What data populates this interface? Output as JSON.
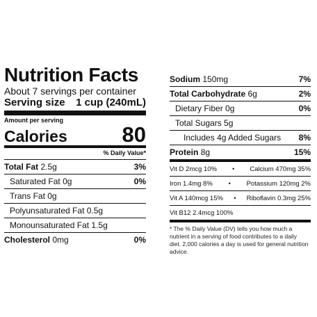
{
  "label": {
    "title": "Nutrition Facts",
    "servings_per_container": "About 7 servings per container",
    "serving_size_label": "Serving size",
    "serving_size_value": "1 cup (240mL)",
    "amount_per_serving": "Amount per serving",
    "calories_label": "Calories",
    "calories_value": "80",
    "dv_header": "% Daily Value*"
  },
  "left_rows": [
    {
      "name": "Total Fat",
      "amount": "2.5g",
      "dv": "3%"
    },
    {
      "name": "Saturated Fat",
      "amount": "0g",
      "dv": "0%"
    },
    {
      "name": "Trans Fat",
      "amount": "0g",
      "dv": ""
    },
    {
      "name": "Polyunsaturated Fat",
      "amount": "0.5g",
      "dv": ""
    },
    {
      "name": "Monounsaturated Fat",
      "amount": "1.5g",
      "dv": ""
    },
    {
      "name": "Cholesterol",
      "amount": "0mg",
      "dv": "0%"
    }
  ],
  "right_rows": [
    {
      "name": "Sodium",
      "amount": "150mg",
      "dv": "7%"
    },
    {
      "name": "Total Carbohydrate",
      "amount": "6g",
      "dv": "2%"
    },
    {
      "name": "Dietary Fiber",
      "amount": "0g",
      "dv": "0%"
    },
    {
      "name": "Total Sugars",
      "amount": "5g",
      "dv": ""
    },
    {
      "name": "Includes 4g Added Sugars",
      "amount": "",
      "dv": "8%"
    },
    {
      "name": "Protein",
      "amount": "8g",
      "dv": "15%"
    }
  ],
  "vitamins": [
    {
      "left": "Vit D 2mcg 10%",
      "right": "Calcium 470mg 35%"
    },
    {
      "left": "Iron 1.4mg 8%",
      "right": "Potassium 120mg 2%"
    },
    {
      "left": "Vit A 140mcg 15%",
      "right": "Riboflavin 0.3mg 25%"
    },
    {
      "left": "Vit B12 2.4mcg 100%",
      "right": ""
    }
  ],
  "separator": "•",
  "footnote": "* The % Daily Value (DV) tells you how much a nutrient in a serving of food contributes to a daily diet. 2,000 calories a day is used for general nutrition advice."
}
